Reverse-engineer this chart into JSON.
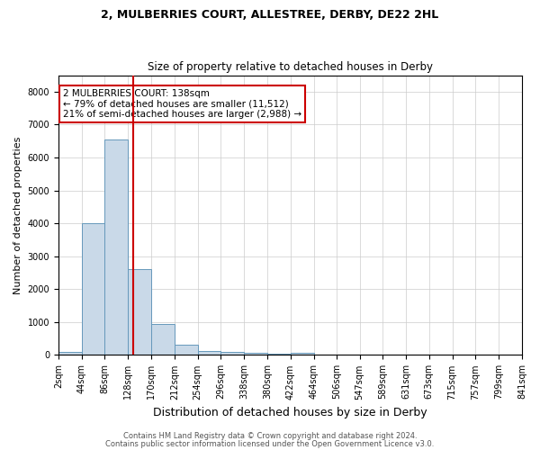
{
  "title1": "2, MULBERRIES COURT, ALLESTREE, DERBY, DE22 2HL",
  "title2": "Size of property relative to detached houses in Derby",
  "xlabel": "Distribution of detached houses by size in Derby",
  "ylabel": "Number of detached properties",
  "footer1": "Contains HM Land Registry data © Crown copyright and database right 2024.",
  "footer2": "Contains public sector information licensed under the Open Government Licence v3.0.",
  "annotation_line1": "2 MULBERRIES COURT: 138sqm",
  "annotation_line2": "← 79% of detached houses are smaller (11,512)",
  "annotation_line3": "21% of semi-detached houses are larger (2,988) →",
  "property_size": 138,
  "bin_edges": [
    2,
    44,
    86,
    128,
    170,
    212,
    254,
    296,
    338,
    380,
    422,
    464,
    506,
    547,
    589,
    631,
    673,
    715,
    757,
    799,
    841
  ],
  "bar_heights": [
    100,
    4000,
    6550,
    2600,
    950,
    300,
    120,
    100,
    60,
    40,
    60,
    0,
    0,
    0,
    0,
    0,
    0,
    0,
    0,
    0
  ],
  "bar_color": "#c9d9e8",
  "bar_edge_color": "#6699bb",
  "red_line_color": "#cc0000",
  "ylim": [
    0,
    8500
  ],
  "yticks": [
    0,
    1000,
    2000,
    3000,
    4000,
    5000,
    6000,
    7000,
    8000
  ],
  "annotation_box_color": "#ffffff",
  "annotation_box_edge": "#cc0000",
  "background_color": "#ffffff",
  "grid_color": "#cccccc",
  "title1_fontsize": 9,
  "title2_fontsize": 8.5,
  "xlabel_fontsize": 9,
  "ylabel_fontsize": 8,
  "footer_fontsize": 6,
  "annotation_fontsize": 7.5,
  "tick_fontsize": 7
}
